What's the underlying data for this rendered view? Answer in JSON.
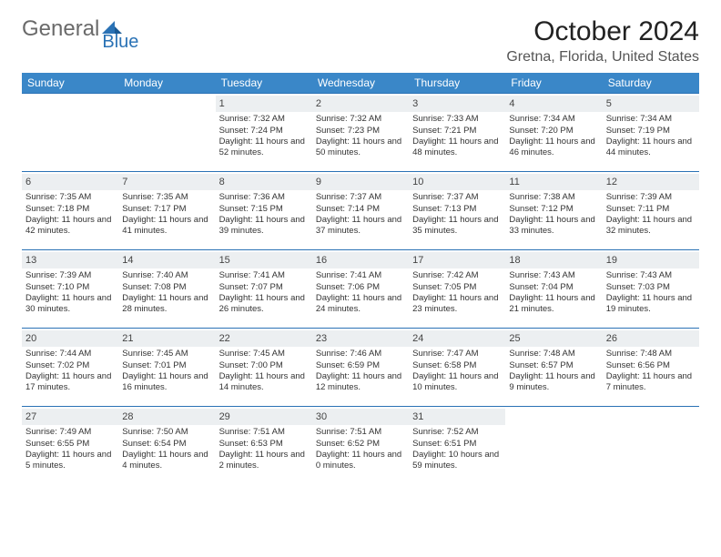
{
  "logo": {
    "text1": "General",
    "text2": "Blue"
  },
  "title": "October 2024",
  "location": "Gretna, Florida, United States",
  "colors": {
    "header_bg": "#3a87c8",
    "header_text": "#ffffff",
    "cell_border": "#2a72b5",
    "daynum_bg": "#eceff1",
    "logo_gray": "#6a6a6a",
    "logo_blue": "#2a72b5"
  },
  "dayNames": [
    "Sunday",
    "Monday",
    "Tuesday",
    "Wednesday",
    "Thursday",
    "Friday",
    "Saturday"
  ],
  "startOffset": 2,
  "days": [
    {
      "n": 1,
      "sunrise": "7:32 AM",
      "sunset": "7:24 PM",
      "daylight": "11 hours and 52 minutes."
    },
    {
      "n": 2,
      "sunrise": "7:32 AM",
      "sunset": "7:23 PM",
      "daylight": "11 hours and 50 minutes."
    },
    {
      "n": 3,
      "sunrise": "7:33 AM",
      "sunset": "7:21 PM",
      "daylight": "11 hours and 48 minutes."
    },
    {
      "n": 4,
      "sunrise": "7:34 AM",
      "sunset": "7:20 PM",
      "daylight": "11 hours and 46 minutes."
    },
    {
      "n": 5,
      "sunrise": "7:34 AM",
      "sunset": "7:19 PM",
      "daylight": "11 hours and 44 minutes."
    },
    {
      "n": 6,
      "sunrise": "7:35 AM",
      "sunset": "7:18 PM",
      "daylight": "11 hours and 42 minutes."
    },
    {
      "n": 7,
      "sunrise": "7:35 AM",
      "sunset": "7:17 PM",
      "daylight": "11 hours and 41 minutes."
    },
    {
      "n": 8,
      "sunrise": "7:36 AM",
      "sunset": "7:15 PM",
      "daylight": "11 hours and 39 minutes."
    },
    {
      "n": 9,
      "sunrise": "7:37 AM",
      "sunset": "7:14 PM",
      "daylight": "11 hours and 37 minutes."
    },
    {
      "n": 10,
      "sunrise": "7:37 AM",
      "sunset": "7:13 PM",
      "daylight": "11 hours and 35 minutes."
    },
    {
      "n": 11,
      "sunrise": "7:38 AM",
      "sunset": "7:12 PM",
      "daylight": "11 hours and 33 minutes."
    },
    {
      "n": 12,
      "sunrise": "7:39 AM",
      "sunset": "7:11 PM",
      "daylight": "11 hours and 32 minutes."
    },
    {
      "n": 13,
      "sunrise": "7:39 AM",
      "sunset": "7:10 PM",
      "daylight": "11 hours and 30 minutes."
    },
    {
      "n": 14,
      "sunrise": "7:40 AM",
      "sunset": "7:08 PM",
      "daylight": "11 hours and 28 minutes."
    },
    {
      "n": 15,
      "sunrise": "7:41 AM",
      "sunset": "7:07 PM",
      "daylight": "11 hours and 26 minutes."
    },
    {
      "n": 16,
      "sunrise": "7:41 AM",
      "sunset": "7:06 PM",
      "daylight": "11 hours and 24 minutes."
    },
    {
      "n": 17,
      "sunrise": "7:42 AM",
      "sunset": "7:05 PM",
      "daylight": "11 hours and 23 minutes."
    },
    {
      "n": 18,
      "sunrise": "7:43 AM",
      "sunset": "7:04 PM",
      "daylight": "11 hours and 21 minutes."
    },
    {
      "n": 19,
      "sunrise": "7:43 AM",
      "sunset": "7:03 PM",
      "daylight": "11 hours and 19 minutes."
    },
    {
      "n": 20,
      "sunrise": "7:44 AM",
      "sunset": "7:02 PM",
      "daylight": "11 hours and 17 minutes."
    },
    {
      "n": 21,
      "sunrise": "7:45 AM",
      "sunset": "7:01 PM",
      "daylight": "11 hours and 16 minutes."
    },
    {
      "n": 22,
      "sunrise": "7:45 AM",
      "sunset": "7:00 PM",
      "daylight": "11 hours and 14 minutes."
    },
    {
      "n": 23,
      "sunrise": "7:46 AM",
      "sunset": "6:59 PM",
      "daylight": "11 hours and 12 minutes."
    },
    {
      "n": 24,
      "sunrise": "7:47 AM",
      "sunset": "6:58 PM",
      "daylight": "11 hours and 10 minutes."
    },
    {
      "n": 25,
      "sunrise": "7:48 AM",
      "sunset": "6:57 PM",
      "daylight": "11 hours and 9 minutes."
    },
    {
      "n": 26,
      "sunrise": "7:48 AM",
      "sunset": "6:56 PM",
      "daylight": "11 hours and 7 minutes."
    },
    {
      "n": 27,
      "sunrise": "7:49 AM",
      "sunset": "6:55 PM",
      "daylight": "11 hours and 5 minutes."
    },
    {
      "n": 28,
      "sunrise": "7:50 AM",
      "sunset": "6:54 PM",
      "daylight": "11 hours and 4 minutes."
    },
    {
      "n": 29,
      "sunrise": "7:51 AM",
      "sunset": "6:53 PM",
      "daylight": "11 hours and 2 minutes."
    },
    {
      "n": 30,
      "sunrise": "7:51 AM",
      "sunset": "6:52 PM",
      "daylight": "11 hours and 0 minutes."
    },
    {
      "n": 31,
      "sunrise": "7:52 AM",
      "sunset": "6:51 PM",
      "daylight": "10 hours and 59 minutes."
    }
  ],
  "labels": {
    "sunrise": "Sunrise:",
    "sunset": "Sunset:",
    "daylight": "Daylight:"
  }
}
